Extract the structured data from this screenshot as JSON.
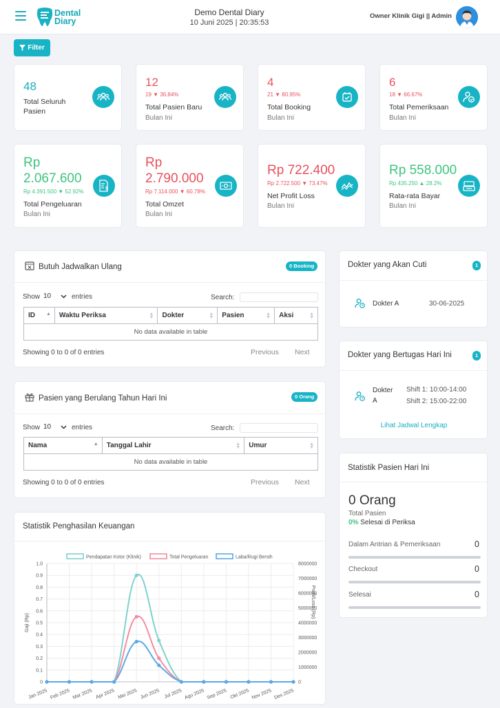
{
  "header": {
    "logo_line1": "Dental",
    "logo_line2": "Diary",
    "title": "Demo Dental Diary",
    "datetime": "10 Juni 2025 | 20:35:53",
    "user": "Owner Klinik Gigi || Admin"
  },
  "filter_label": "Filter",
  "stats": [
    {
      "value": "48",
      "change": "",
      "label": "Total Seluruh Pasien",
      "sub": "",
      "icon": "users-icon"
    },
    {
      "value": "12",
      "change": "19 ▼ 36.84%",
      "label": "Total Pasien Baru",
      "sub": "Bulan Ini",
      "icon": "users-icon"
    },
    {
      "value": "4",
      "change": "21 ▼ 80.95%",
      "label": "Total Booking",
      "sub": "Bulan Ini",
      "icon": "calendar-check-icon"
    },
    {
      "value": "6",
      "change": "18 ▼ 66.67%",
      "label": "Total Pemeriksaan",
      "sub": "Bulan Ini",
      "icon": "user-check-icon"
    },
    {
      "value_line1": "Rp",
      "value_line2": "2.067.600",
      "change": "Rp 4.391.500 ▼ 52.92%",
      "label": "Total Pengeluaran",
      "sub": "Bulan Ini",
      "icon": "invoice-icon"
    },
    {
      "value_line1": "Rp",
      "value_line2": "2.790.000",
      "change": "Rp 7.114.000 ▼ 60.78%",
      "label": "Total Omzet",
      "sub": "Bulan Ini",
      "icon": "money-icon"
    },
    {
      "value": "Rp 722.400",
      "change": "Rp 2.722.500 ▼ 73.47%",
      "label": "Net Profit Loss",
      "sub": "Bulan Ini",
      "icon": "chart-wave-icon"
    },
    {
      "value": "Rp 558.000",
      "change": "Rp 435.250 ▲ 28.2%",
      "label": "Rata-rata Bayar",
      "sub": "Bulan Ini",
      "icon": "cash-register-icon"
    }
  ],
  "reschedule": {
    "title": "Butuh Jadwalkan Ulang",
    "badge": "0 Booking",
    "show": "Show",
    "page_size": "10",
    "entries": "entries",
    "search_label": "Search:",
    "columns": [
      "ID",
      "Waktu Periksa",
      "Dokter",
      "Pasien",
      "Aksi"
    ],
    "empty": "No data available in table",
    "info": "Showing 0 to 0 of 0 entries",
    "previous": "Previous",
    "next": "Next"
  },
  "birthday": {
    "title": "Pasien yang Berulang Tahun Hari Ini",
    "badge": "0 Orang",
    "show": "Show",
    "page_size": "10",
    "entries": "entries",
    "search_label": "Search:",
    "columns": [
      "Nama",
      "Tanggal Lahir",
      "Umur"
    ],
    "empty": "No data available in table",
    "info": "Showing 0 to 0 of 0 entries",
    "previous": "Previous",
    "next": "Next"
  },
  "leave": {
    "title": "Dokter yang Akan Cuti",
    "badge": "1",
    "doctor": "Dokter A",
    "date": "30-06-2025"
  },
  "duty": {
    "title": "Dokter yang Bertugas Hari Ini",
    "badge": "1",
    "doctor_line1": "Dokter",
    "doctor_line2": "A",
    "shift1": "Shift 1: 10:00-14:00",
    "shift2": "Shift 2: 15:00-22:00",
    "link": "Lihat Jadwal Lengkap"
  },
  "patient_stats": {
    "title": "Statistik Pasien Hari Ini",
    "count": "0 Orang",
    "total_label": "Total Pasien",
    "done_pct": "0%",
    "done_label": "Selesai di Periksa",
    "rows": [
      {
        "label": "Dalam Antrian & Pemeriksaan",
        "value": "0"
      },
      {
        "label": "Checkout",
        "value": "0"
      },
      {
        "label": "Selesai",
        "value": "0"
      }
    ]
  },
  "finance": {
    "title": "Statistik Penghasilan Keuangan"
  },
  "chart_data": {
    "type": "line",
    "title": "",
    "x": [
      "Jan 2025",
      "Feb 2025",
      "Mar 2025",
      "Apr 2025",
      "Mei 2025",
      "Jun 2025",
      "Jul 2025",
      "Agu 2025",
      "Sep 2025",
      "Okt 2025",
      "Nov 2025",
      "Des 2025"
    ],
    "ylabel": "Gaji (Rp)",
    "ylabel_right": "Profit/Loss (Rp)",
    "ylim": [
      0,
      1.0
    ],
    "yticks": [
      "1.0",
      "0.9",
      "0.8",
      "0.7",
      "0.6",
      "0.5",
      "0.4",
      "0.3",
      "0.2",
      "0.1",
      "0"
    ],
    "ylim_right": [
      0,
      8000000
    ],
    "yticks_right": [
      "8000000",
      "7000000",
      "6000000",
      "5000000",
      "4000000",
      "3000000",
      "2000000",
      "1000000",
      "0"
    ],
    "legend_position": "top",
    "series": [
      {
        "name": "Pendapatan Kotor (Klinik)",
        "color": "#7fd1cf",
        "axis": "left",
        "values": [
          0,
          0,
          0,
          0,
          0.9,
          0.35,
          0,
          0,
          0,
          0,
          0,
          0
        ]
      },
      {
        "name": "Total Pengeluaran",
        "color": "#f28ca0",
        "axis": "left",
        "values": [
          0,
          0,
          0,
          0,
          0.55,
          0.2,
          0,
          0,
          0,
          0,
          0,
          0
        ]
      },
      {
        "name": "Laba/Rugi Bersih",
        "color": "#5aa9e6",
        "axis": "left",
        "values": [
          0,
          0,
          0,
          0,
          0.34,
          0.14,
          0,
          0,
          0,
          0,
          0,
          0
        ]
      }
    ]
  }
}
